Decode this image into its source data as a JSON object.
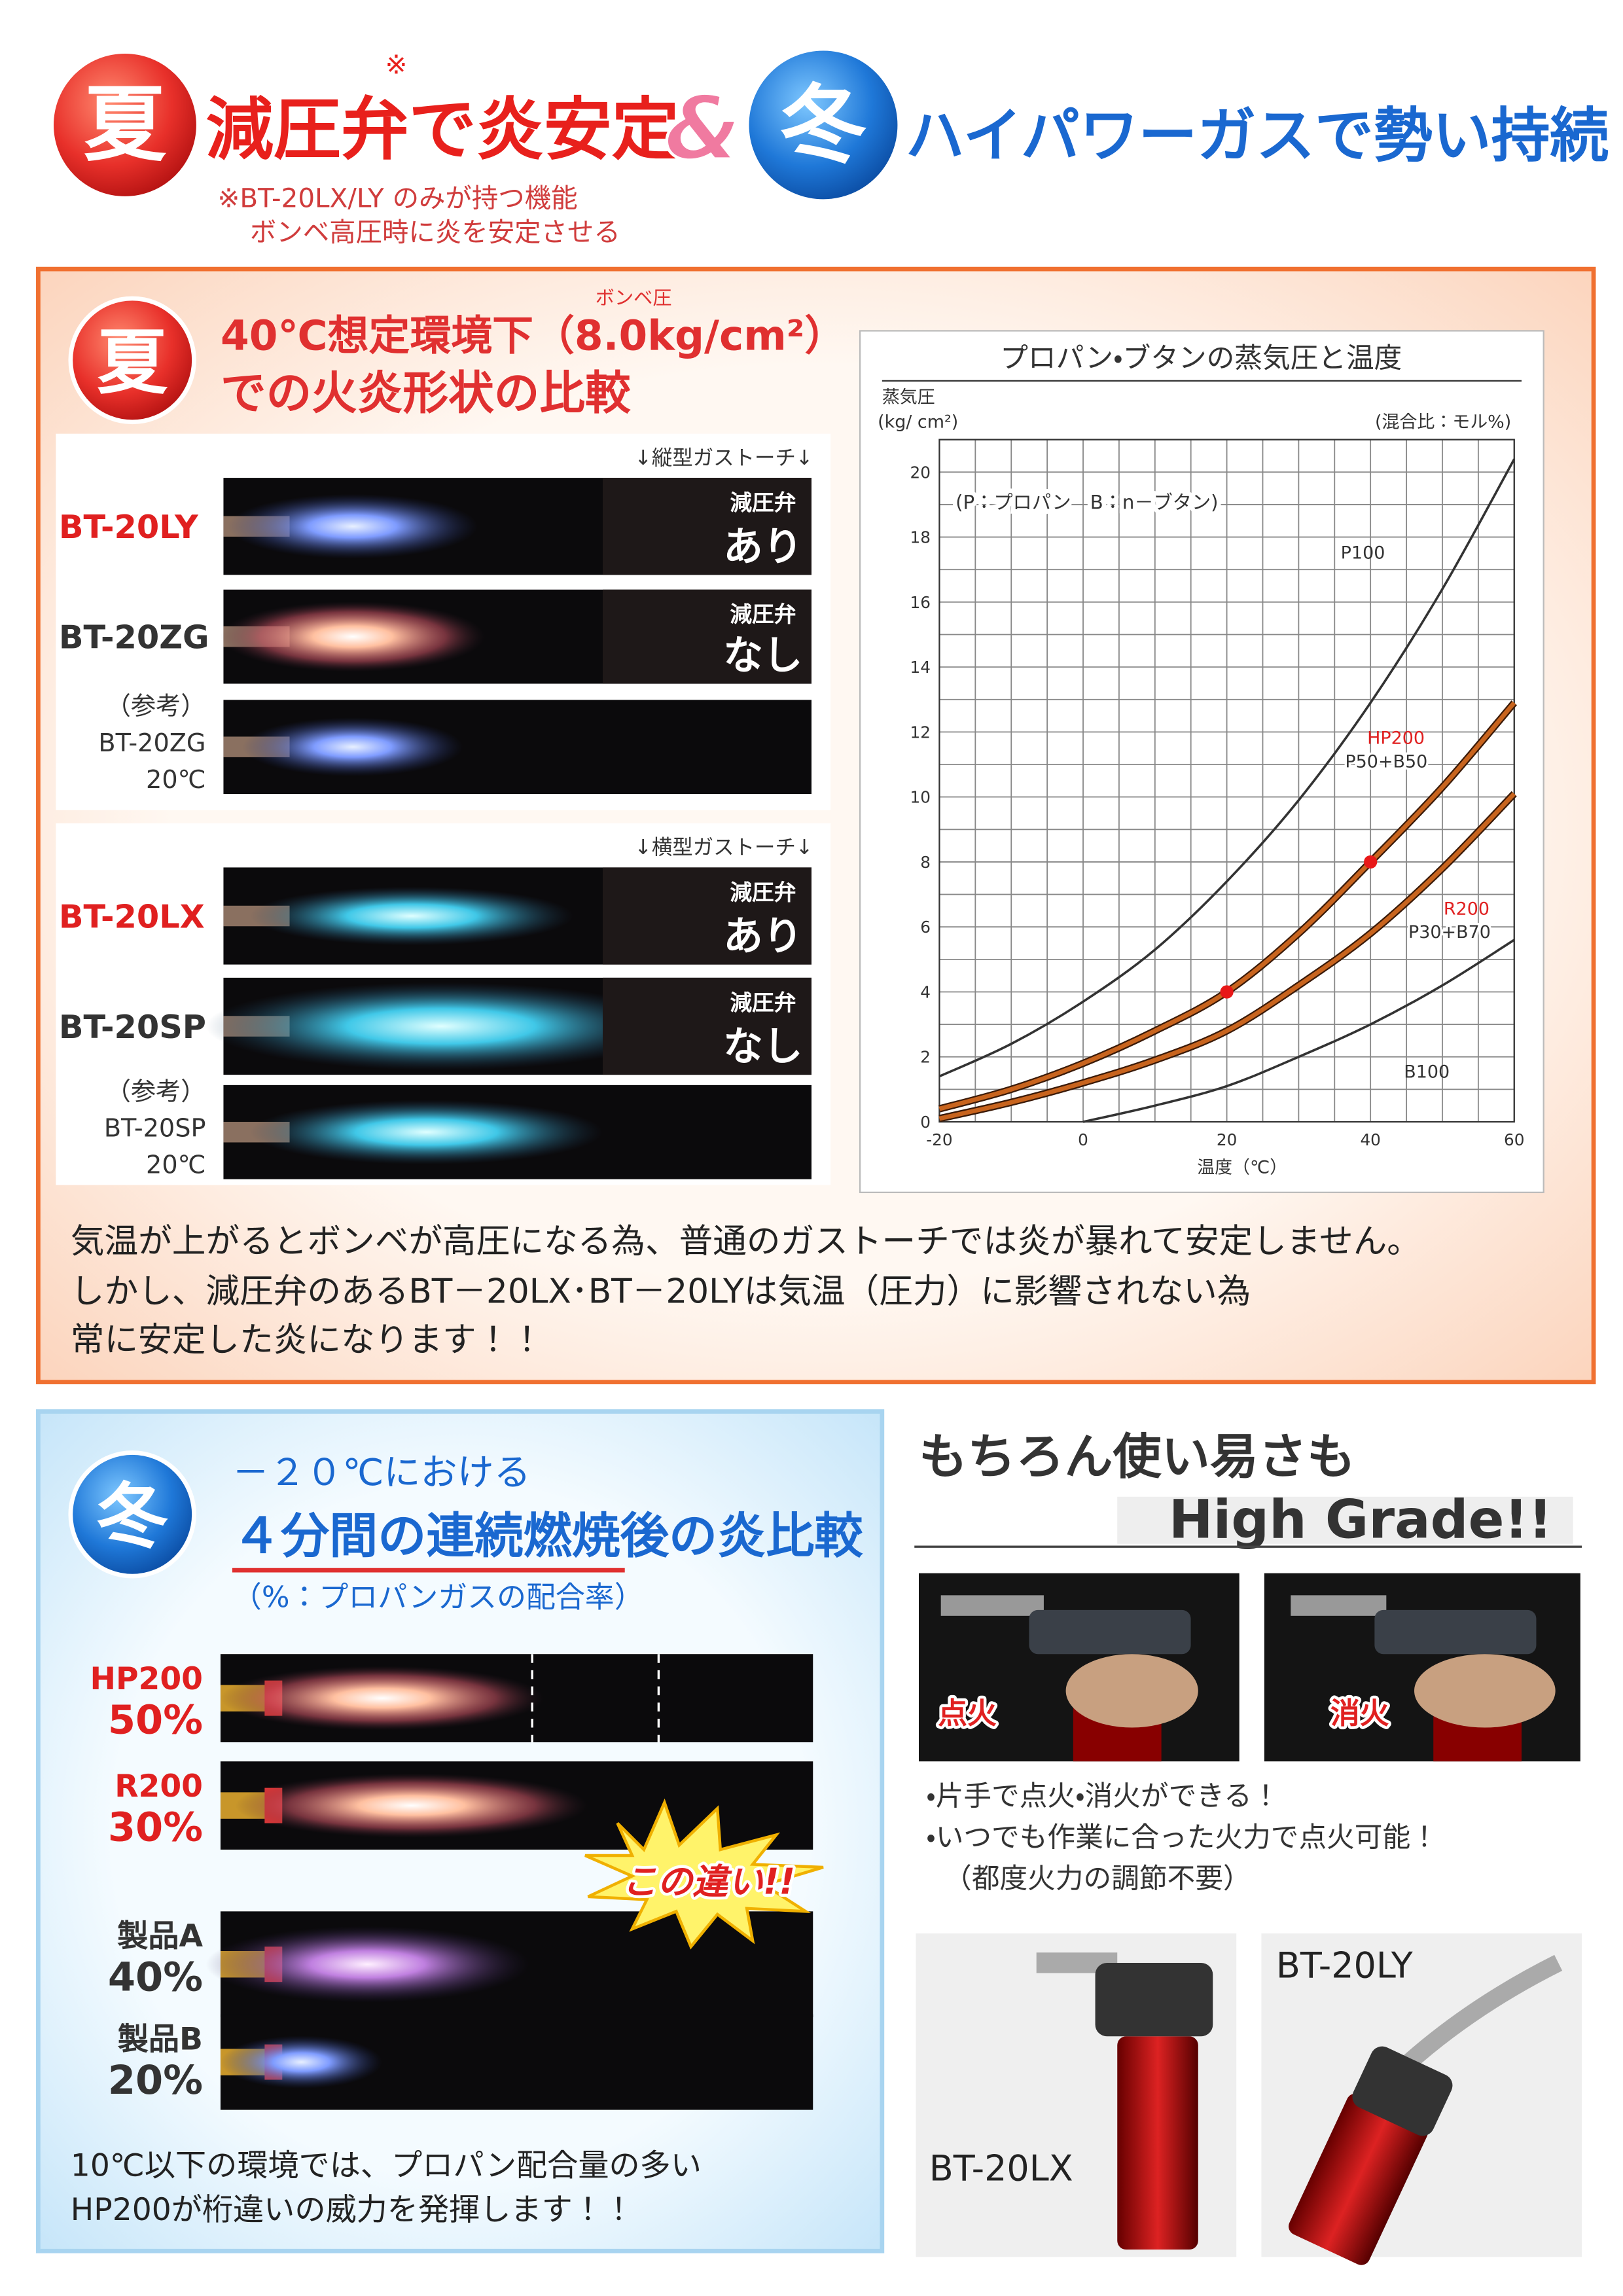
{
  "header": {
    "summer_badge": "夏",
    "summer_title": "減圧弁で炎安定",
    "note_mark": "※",
    "note_lines": [
      "※BT-20LX/LY のみが持つ機能",
      "ボンベ高圧時に炎を安定させる"
    ],
    "ampersand": "&",
    "winter_badge": "冬",
    "winter_title": "ハイパワーガスで勢い持続"
  },
  "summer": {
    "badge": "夏",
    "ruby": "ボンベ圧",
    "heading_line1": "40℃想定環境下（8.0kg/cm²）",
    "heading_line2": "での火炎形状の比較",
    "vertical_group": {
      "caption": "↓縦型ガストーチ↓",
      "rows": [
        {
          "label": [
            "BT-20LY"
          ],
          "valve": [
            "減圧弁",
            "あり"
          ]
        },
        {
          "label": [
            "BT-20ZG"
          ],
          "valve": [
            "減圧弁",
            "なし"
          ]
        },
        {
          "label": [
            "（参考）",
            "BT-20ZG",
            "20℃"
          ]
        }
      ]
    },
    "horizontal_group": {
      "caption": "↓横型ガストーチ↓",
      "rows": [
        {
          "label": [
            "BT-20LX"
          ],
          "valve": [
            "減圧弁",
            "あり"
          ]
        },
        {
          "label": [
            "BT-20SP"
          ],
          "valve": [
            "減圧弁",
            "なし"
          ]
        },
        {
          "label": [
            "（参考）",
            "BT-20SP",
            "20℃"
          ]
        }
      ]
    },
    "text_lines": [
      "気温が上がるとボンベが高圧になる為、普通のガストーチでは炎が暴れて安定しません。",
      "しかし、減圧弁のあるBT－20LX･BT－20LYは気温（圧力）に影響されない為",
      "常に安定した炎になります！！"
    ]
  },
  "chart_data": {
    "type": "line",
    "title": "プロパン・ブタンの蒸気圧と温度",
    "y_label": [
      "蒸気圧",
      "(kg/ cm²)"
    ],
    "ratio_note": "(混合比：モル%)",
    "annotation": "(P：プロパン　B：n－ブタン)",
    "x_label": "温度（℃）",
    "x": [
      -20,
      -10,
      0,
      10,
      20,
      30,
      40,
      50,
      60
    ],
    "series": [
      {
        "name": "P100",
        "color": "#333333",
        "values": [
          1.4,
          2.4,
          3.7,
          5.3,
          7.4,
          9.9,
          12.9,
          16.4,
          20.4
        ]
      },
      {
        "name": "HP200",
        "composition": "P50+B50",
        "color": "#c8641e",
        "values": [
          0.4,
          1.0,
          1.8,
          2.8,
          4.0,
          5.8,
          8.0,
          10.3,
          12.9
        ]
      },
      {
        "name": "R200",
        "composition": "P30+B70",
        "color": "#c8641e",
        "values": [
          0.1,
          0.6,
          1.2,
          1.9,
          2.8,
          4.2,
          5.8,
          7.8,
          10.1
        ]
      },
      {
        "name": "B100",
        "color": "#333333",
        "values": [
          null,
          null,
          0.0,
          0.5,
          1.1,
          2.0,
          3.0,
          4.2,
          5.6
        ]
      }
    ],
    "highlights": [
      {
        "x": 20,
        "y": 4.0
      },
      {
        "x": 40,
        "y": 8.0
      }
    ],
    "xlim": [
      -20,
      60
    ],
    "ylim": [
      0,
      21
    ],
    "xticks": [
      -20,
      0,
      20,
      40,
      60
    ],
    "yticks": [
      0,
      2,
      4,
      6,
      8,
      10,
      12,
      14,
      16,
      18,
      20
    ],
    "xgrid": [
      -20,
      -15,
      -10,
      -5,
      0,
      5,
      10,
      15,
      20,
      25,
      30,
      35,
      40,
      45,
      50,
      55,
      60
    ],
    "ygrid": [
      0,
      1,
      2,
      3,
      4,
      5,
      6,
      7,
      8,
      9,
      10,
      11,
      12,
      13,
      14,
      15,
      16,
      17,
      18,
      19,
      20,
      21
    ]
  },
  "winter": {
    "badge": "冬",
    "heading_line1": "－２０℃における",
    "heading_line2": "４分間の連続燃焼後の炎比較",
    "heading_line3": "（%：プロパンガスの配合率）",
    "rows": [
      [
        "HP200",
        "50%"
      ],
      [
        "R200",
        "30%"
      ],
      [
        "製品A",
        "40%"
      ],
      [
        "製品B",
        "20%"
      ]
    ],
    "burst": "この違い!!",
    "text_lines": [
      "10℃以下の環境では、プロパン配合量の多い",
      "HP200が桁違いの威力を発揮します！！"
    ]
  },
  "features": {
    "heading_line1": "もちろん使い易さも",
    "heading_line2": "High Grade!!",
    "photo_labels": [
      "点火",
      "消火"
    ],
    "bullets": [
      "・片手で点火・消火ができる！",
      "・いつでも作業に合った火力で点火可能！",
      "（都度火力の調節不要）"
    ],
    "products": [
      "BT-20LX",
      "BT-20LY"
    ]
  }
}
